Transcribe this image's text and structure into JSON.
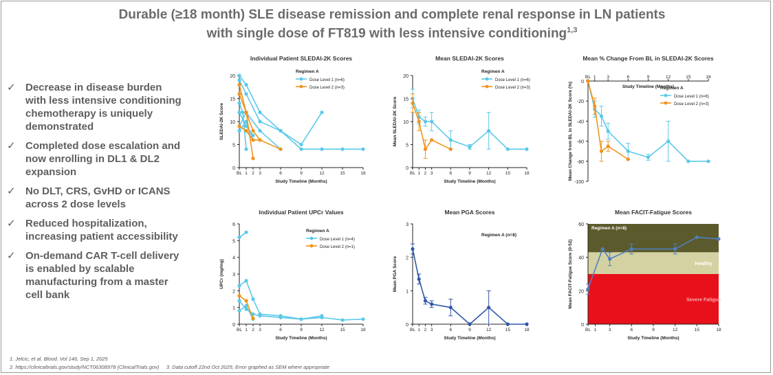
{
  "title": {
    "line1": "Durable (≥18 month) SLE disease remission and complete renal response in LN patients",
    "line2": "with single dose of FT819 with less intensive conditioning",
    "sup": "1,3"
  },
  "bullets": [
    {
      "icon": "check-icon",
      "text": "Decrease in disease burden with less intensive conditioning chemotherapy is uniquely demonstrated"
    },
    {
      "icon": "check-icon",
      "text": "Completed dose escalation and now enrolling in DL1 & DL2 expansion"
    },
    {
      "icon": "check-icon",
      "text": "No DLT, CRS, GvHD or ICANS across 2 dose levels"
    },
    {
      "icon": "check-icon",
      "text": "Reduced hospitalization, increasing patient accessibility"
    },
    {
      "icon": "check-icon",
      "text": "On-demand CAR T-cell delivery is enabled by scalable manufacturing from a master cell bank"
    }
  ],
  "footnotes": {
    "f1": "1. Jelcic, et al. Blood. Vol 146, Sep 1, 2025",
    "f2": "2. https://clinicaltrials.gov/study/NCT06308978 (ClinicalTrials.gov)",
    "f3": "3. Data cutoff 22nd Oct 2025; Error graphed as SEM where appropriate"
  },
  "colors": {
    "dl1": "#5bc8e8",
    "dl2": "#f0931c",
    "pga": "#2f57a8",
    "fatigue": "#4f7fc4",
    "good": "#5a5a2c",
    "healthy": "#d4d2a2",
    "bad": "#e8101a"
  },
  "chart_data": [
    {
      "type": "line",
      "title": "Individual Patient SLEDAI-2K Scores",
      "xlabel": "Study Timeline (Months)",
      "ylabel": "SLEDAI-2K Score",
      "xticks": [
        "BL",
        "1",
        "2",
        "3",
        "6",
        "9",
        "12",
        "15",
        "18"
      ],
      "xlim": [
        0,
        18
      ],
      "ylim": [
        0,
        20
      ],
      "yticks": [
        "0",
        "5",
        "10",
        "15",
        "20"
      ],
      "legend_title": "Regimen A",
      "legend": [
        {
          "name": "Dose Level 1 (n=6)",
          "color": "#5bc8e8"
        },
        {
          "name": "Dose Level 2 (n=3)",
          "color": "#f0931c"
        }
      ],
      "series": [
        {
          "name": "Dose Level 1 (n=6)",
          "color": "#5bc8e8",
          "x": [
            0,
            1,
            3,
            6,
            9,
            12,
            15,
            18
          ],
          "y": [
            20,
            18,
            12,
            8,
            4,
            4,
            4,
            4
          ]
        },
        {
          "name": "",
          "color": "#5bc8e8",
          "x": [
            0,
            1,
            3,
            6,
            9,
            12
          ],
          "y": [
            19,
            16,
            10,
            8,
            5,
            12
          ]
        },
        {
          "name": "",
          "color": "#5bc8e8",
          "x": [
            0,
            0.5,
            1
          ],
          "y": [
            14,
            12,
            4
          ]
        },
        {
          "name": "",
          "color": "#5bc8e8",
          "x": [
            0,
            1,
            3,
            6
          ],
          "y": [
            9,
            12,
            8,
            4
          ]
        },
        {
          "name": "",
          "color": "#5bc8e8",
          "x": [
            0,
            1,
            2
          ],
          "y": [
            8,
            10,
            6
          ]
        },
        {
          "name": "",
          "color": "#5bc8e8",
          "x": [
            0,
            1,
            2
          ],
          "y": [
            12,
            9,
            7
          ]
        },
        {
          "name": "Dose Level 2 (n=3)",
          "color": "#f0931c",
          "x": [
            0,
            1,
            2
          ],
          "y": [
            18,
            12,
            2
          ]
        },
        {
          "name": "",
          "color": "#f0931c",
          "x": [
            0,
            1,
            2,
            3,
            6
          ],
          "y": [
            16,
            12,
            8,
            6,
            4
          ]
        },
        {
          "name": "",
          "color": "#f0931c",
          "x": [
            0,
            1,
            2,
            3
          ],
          "y": [
            9,
            8,
            6,
            6
          ]
        }
      ]
    },
    {
      "type": "line",
      "title": "Mean SLEDAI-2K Scores",
      "xlabel": "Study Timeline (Months)",
      "ylabel": "Mean SLEDAI-2K Score",
      "xticks": [
        "BL",
        "1",
        "2",
        "3",
        "6",
        "9",
        "12",
        "15",
        "18"
      ],
      "xlim": [
        0,
        18
      ],
      "ylim": [
        0,
        20
      ],
      "yticks": [
        "0",
        "5",
        "10",
        "15",
        "20"
      ],
      "legend_title": "Regimen A",
      "legend": [
        {
          "name": "Dose Level 1 (n=6)",
          "color": "#5bc8e8"
        },
        {
          "name": "Dose Level 2 (n=3)",
          "color": "#f0931c"
        }
      ],
      "series": [
        {
          "name": "Dose Level 1 (n=6)",
          "color": "#5bc8e8",
          "x": [
            0,
            1,
            2,
            3,
            6,
            9,
            12,
            15,
            18
          ],
          "y": [
            15,
            11,
            10,
            10,
            6,
            4.5,
            8,
            4,
            4
          ],
          "err": [
            2,
            1.5,
            1,
            2,
            2,
            0.5,
            4,
            0,
            0
          ]
        },
        {
          "name": "Dose Level 2 (n=3)",
          "color": "#f0931c",
          "x": [
            0,
            1,
            2,
            3,
            6
          ],
          "y": [
            14,
            10,
            4,
            6,
            4
          ],
          "err": [
            2,
            2,
            2,
            0,
            0
          ]
        }
      ]
    },
    {
      "type": "line",
      "title": "Mean % Change From BL in SLEDAI-2K Scores",
      "xlabel": "Study Timeline (Months)",
      "ylabel": "Mean Change from BL in SLEDAI-2K Score (%)",
      "xticks": [
        "BL",
        "1",
        "3",
        "6",
        "9",
        "12",
        "15",
        "18"
      ],
      "xlim": [
        0,
        18
      ],
      "ylim": [
        -100,
        0
      ],
      "yticks": [
        "0",
        "-20",
        "-40",
        "-60",
        "-80",
        "-100"
      ],
      "legend_title": "Regimen A",
      "legend": [
        {
          "name": "Dose Level 1 (n=6)",
          "color": "#5bc8e8"
        },
        {
          "name": "Dose Level 2 (n=3)",
          "color": "#f0931c"
        }
      ],
      "series": [
        {
          "name": "Dose Level 1 (n=6)",
          "color": "#5bc8e8",
          "x": [
            0,
            1,
            2,
            3,
            6,
            9,
            12,
            15,
            18
          ],
          "y": [
            0,
            -28,
            -35,
            -50,
            -70,
            -76,
            -60,
            -80,
            -80
          ],
          "err": [
            0,
            8,
            10,
            8,
            8,
            3,
            20,
            0,
            0
          ]
        },
        {
          "name": "Dose Level 2 (n=3)",
          "color": "#f0931c",
          "x": [
            0,
            1,
            2,
            3,
            6
          ],
          "y": [
            0,
            -25,
            -70,
            -65,
            -78
          ],
          "err": [
            0,
            8,
            10,
            5,
            0
          ]
        }
      ]
    },
    {
      "type": "line",
      "title": "Individual Patient UPCr Values",
      "xlabel": "Study Timeline (Months)",
      "ylabel": "UPCr (mg/mg)",
      "xticks": [
        "BL",
        "1",
        "2",
        "3",
        "6",
        "9",
        "12",
        "15",
        "18"
      ],
      "xlim": [
        0,
        18
      ],
      "ylim": [
        0,
        6
      ],
      "yticks": [
        "0",
        "1",
        "2",
        "3",
        "4",
        "5",
        "6"
      ],
      "legend_title": "Regimen A",
      "legend": [
        {
          "name": "Dose Level 1 (n=4)",
          "color": "#5bc8e8"
        },
        {
          "name": "Dose Level 2 (n=1)",
          "color": "#f0931c"
        }
      ],
      "series": [
        {
          "name": "Dose Level 1 (n=4)",
          "color": "#5bc8e8",
          "x": [
            0,
            1
          ],
          "y": [
            5.2,
            5.5
          ]
        },
        {
          "name": "",
          "color": "#5bc8e8",
          "x": [
            0,
            1,
            2,
            3,
            6,
            9,
            12,
            15,
            18
          ],
          "y": [
            2.3,
            2.6,
            1.5,
            0.6,
            0.5,
            0.3,
            0.4,
            0.25,
            0.3
          ]
        },
        {
          "name": "",
          "color": "#5bc8e8",
          "x": [
            0,
            1,
            2,
            3,
            6,
            9,
            12
          ],
          "y": [
            1.4,
            0.9,
            0.6,
            0.5,
            0.4,
            0.3,
            0.5
          ]
        },
        {
          "name": "",
          "color": "#5bc8e8",
          "x": [
            0,
            1,
            2
          ],
          "y": [
            0.8,
            1.1,
            0.3
          ]
        },
        {
          "name": "Dose Level 2 (n=1)",
          "color": "#f0931c",
          "x": [
            0,
            1,
            2
          ],
          "y": [
            1.7,
            1.4,
            0.35
          ]
        }
      ]
    },
    {
      "type": "line",
      "title": "Mean PGA Scores",
      "xlabel": "Study Timeline (Months)",
      "ylabel": "Mean PGA Score",
      "xticks": [
        "BL",
        "1",
        "2",
        "3",
        "6",
        "9",
        "12",
        "15",
        "18"
      ],
      "xlim": [
        0,
        18
      ],
      "ylim": [
        0,
        3
      ],
      "yticks": [
        "0",
        "1",
        "2",
        "3"
      ],
      "legend_title": "Regimen A (n=8)",
      "series": [
        {
          "name": "Regimen A (n=8)",
          "color": "#2f57a8",
          "x": [
            0,
            1,
            2,
            3,
            6,
            9,
            12,
            15,
            18
          ],
          "y": [
            2.25,
            1.35,
            0.7,
            0.6,
            0.5,
            0,
            0.5,
            0,
            0
          ],
          "err": [
            0.15,
            0.15,
            0.1,
            0.1,
            0.25,
            0,
            0.5,
            0,
            0
          ]
        }
      ]
    },
    {
      "type": "line",
      "title": "Mean FACIT-Fatigue Scores",
      "xlabel": "Study Timeline (Months)",
      "ylabel": "Mean FACIT-Fatigue Score (0-52)",
      "xticks": [
        "BL",
        "1",
        "3",
        "6",
        "9",
        "12",
        "15",
        "18"
      ],
      "xlim": [
        0,
        18
      ],
      "ylim": [
        0,
        60
      ],
      "yticks": [
        "0",
        "20",
        "40",
        "60"
      ],
      "legend_title": "Regimen A (n=8)",
      "bands": [
        {
          "label": "",
          "from": 43,
          "to": 60,
          "color": "#5a5a2c"
        },
        {
          "label": "Healthy",
          "from": 30,
          "to": 43,
          "color": "#d4d2a2"
        },
        {
          "label": "Severe Fatigue",
          "from": 0,
          "to": 30,
          "color": "#e8101a"
        }
      ],
      "series": [
        {
          "name": "Regimen A (n=8)",
          "color": "#4f7fc4",
          "x": [
            0,
            2,
            3,
            6,
            12,
            15,
            18
          ],
          "y": [
            21,
            45,
            39,
            45,
            45,
            52,
            51
          ],
          "err": [
            3,
            0,
            4,
            3,
            3,
            0,
            0
          ]
        }
      ]
    }
  ]
}
